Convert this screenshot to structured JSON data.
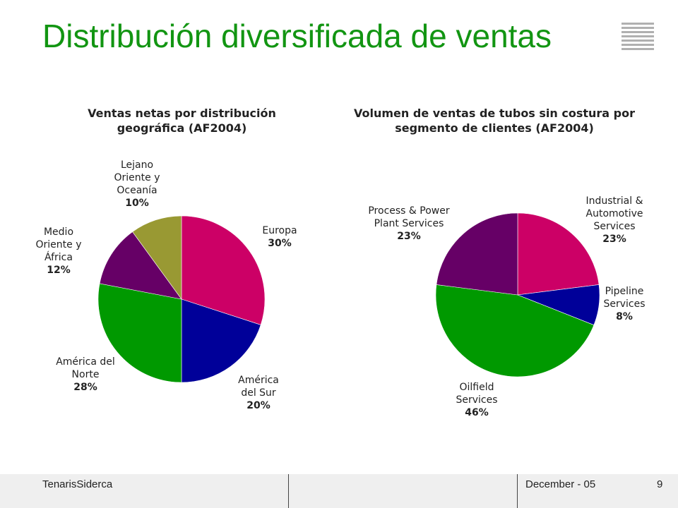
{
  "slide": {
    "title": "Distribución diversificada de ventas",
    "footer_left": "TenarisSiderca",
    "footer_date": "December - 05",
    "page_number": "9"
  },
  "chart_data": [
    {
      "type": "pie",
      "title": "Ventas netas por distribución geográfica (AF2004)",
      "slices": [
        {
          "name": "Europa",
          "value": 30,
          "label": "30%",
          "color": "#cc0066"
        },
        {
          "name": "América del Sur",
          "value": 20,
          "label": "20%",
          "color": "#000099"
        },
        {
          "name": "América del Norte",
          "value": 28,
          "label": "28%",
          "color": "#009900"
        },
        {
          "name": "Medio Oriente y África",
          "value": 12,
          "label": "12%",
          "color": "#660066"
        },
        {
          "name": "Lejano Oriente y Oceanía",
          "value": 10,
          "label": "10%",
          "color": "#999933"
        }
      ]
    },
    {
      "type": "pie",
      "title": "Volumen de ventas de tubos sin costura por segmento de clientes (AF2004)",
      "slices": [
        {
          "name": "Industrial & Automotive Services",
          "value": 23,
          "label": "23%",
          "color": "#cc0066"
        },
        {
          "name": "Pipeline Services",
          "value": 8,
          "label": "8%",
          "color": "#000099"
        },
        {
          "name": "Oilfield Services",
          "value": 46,
          "label": "46%",
          "color": "#009900"
        },
        {
          "name": "Process & Power Plant Services",
          "value": 23,
          "label": "23%",
          "color": "#660066"
        }
      ]
    }
  ]
}
